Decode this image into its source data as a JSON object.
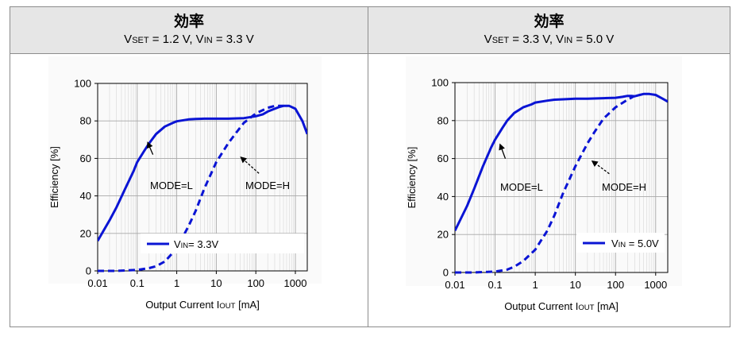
{
  "panels": [
    {
      "title": "効率",
      "subtitle": {
        "vset_v": "V",
        "vset_sub": "SET",
        "vset_value": " = 1.2 V, ",
        "vin_v": "V",
        "vin_sub": "IN",
        "vin_value": " = 3.3 V"
      }
    },
    {
      "title": "効率",
      "subtitle": {
        "vset_v": "V",
        "vset_sub": "SET",
        "vset_value": " = 3.3 V, ",
        "vin_v": "V",
        "vin_sub": "IN",
        "vin_value": " = 5.0 V"
      }
    }
  ],
  "colors": {
    "curve": "#0a14d4",
    "grid": "#c8c8c8",
    "header_bg": "#e6e6e6"
  },
  "chart_data": [
    {
      "type": "line",
      "title": "効率 VSET = 1.2 V, VIN = 3.3 V",
      "xlabel_main": "Output Current I",
      "xlabel_sub": "OUT",
      "xlabel_unit": " [mA]",
      "ylabel": "Efficiency [%]",
      "x_scale": "log",
      "xlim": [
        0.01,
        2000
      ],
      "ylim": [
        0,
        100
      ],
      "x_ticks": [
        0.01,
        0.1,
        1,
        10,
        100,
        1000
      ],
      "x_tick_labels": [
        "0.01",
        "0.1",
        "1",
        "10",
        "100",
        "1000"
      ],
      "y_ticks": [
        0,
        20,
        40,
        60,
        80,
        100
      ],
      "y_tick_labels": [
        "0",
        "20",
        "40",
        "60",
        "80",
        "100"
      ],
      "legend": {
        "label_v": "V",
        "label_sub": "IN",
        "label_rest": "= 3.3V",
        "position": "bottom-right"
      },
      "annotations": [
        {
          "text": "MODE=L",
          "arrow_style": "solid",
          "target_series": "MODE=L"
        },
        {
          "text": "MODE=H",
          "arrow_style": "dashed",
          "target_series": "MODE=H"
        }
      ],
      "series": [
        {
          "name": "MODE=L",
          "style": "solid",
          "x": [
            0.01,
            0.02,
            0.03,
            0.05,
            0.08,
            0.1,
            0.15,
            0.2,
            0.3,
            0.5,
            0.8,
            1,
            2,
            3,
            5,
            10,
            20,
            50,
            100,
            150,
            200,
            300,
            400,
            500,
            700,
            1000,
            1500,
            2000
          ],
          "y": [
            16,
            27,
            34,
            44,
            53,
            58,
            64,
            68,
            73,
            77,
            79,
            79.8,
            80.8,
            81,
            81.2,
            81.2,
            81.2,
            81.5,
            82.5,
            83.5,
            85,
            86.5,
            87.5,
            88,
            88,
            86.5,
            80,
            73
          ]
        },
        {
          "name": "MODE=H",
          "style": "dashed",
          "x": [
            0.01,
            0.03,
            0.1,
            0.2,
            0.3,
            0.5,
            1,
            2,
            3,
            5,
            10,
            20,
            30,
            50,
            100,
            200,
            300,
            500
          ],
          "y": [
            0,
            0,
            0.5,
            1.5,
            2.5,
            5,
            12,
            24,
            32,
            44,
            58,
            68,
            73,
            79,
            84,
            87,
            88,
            88
          ]
        }
      ]
    },
    {
      "type": "line",
      "title": "効率 VSET = 3.3 V, VIN = 5.0 V",
      "xlabel_main": "Output Current I",
      "xlabel_sub": "OUT",
      "xlabel_unit": " [mA]",
      "ylabel": "Efficiency [%]",
      "x_scale": "log",
      "xlim": [
        0.01,
        2000
      ],
      "ylim": [
        0,
        100
      ],
      "x_ticks": [
        0.01,
        0.1,
        1,
        10,
        100,
        1000
      ],
      "x_tick_labels": [
        "0.01",
        "0.1",
        "1",
        "10",
        "100",
        "1000"
      ],
      "y_ticks": [
        0,
        20,
        40,
        60,
        80,
        100
      ],
      "y_tick_labels": [
        "0",
        "20",
        "40",
        "60",
        "80",
        "100"
      ],
      "legend": {
        "label_v": "V",
        "label_sub": "IN",
        "label_rest": " = 5.0V",
        "position": "bottom-right"
      },
      "annotations": [
        {
          "text": "MODE=L",
          "arrow_style": "solid",
          "target_series": "MODE=L"
        },
        {
          "text": "MODE=H",
          "arrow_style": "dashed",
          "target_series": "MODE=H"
        }
      ],
      "series": [
        {
          "name": "MODE=L",
          "style": "solid",
          "x": [
            0.01,
            0.02,
            0.03,
            0.05,
            0.08,
            0.1,
            0.15,
            0.2,
            0.3,
            0.5,
            0.8,
            1,
            2,
            3,
            5,
            10,
            20,
            50,
            100,
            150,
            200,
            250,
            300,
            400,
            500,
            700,
            1000,
            1500,
            2000
          ],
          "y": [
            22,
            35,
            44,
            56,
            66,
            70,
            76,
            80,
            84,
            87,
            88.5,
            89.5,
            90.5,
            91,
            91.2,
            91.5,
            91.5,
            91.8,
            92,
            92.5,
            93,
            93,
            92.8,
            93.5,
            94,
            94,
            93.5,
            91.5,
            90
          ]
        },
        {
          "name": "MODE=H",
          "style": "dashed",
          "x": [
            0.01,
            0.03,
            0.1,
            0.2,
            0.3,
            0.5,
            1,
            2,
            3,
            5,
            10,
            20,
            30,
            50,
            100,
            200,
            300
          ],
          "y": [
            0,
            0,
            0.5,
            1.5,
            3,
            6,
            12,
            22,
            30,
            42,
            56,
            68,
            74,
            81,
            87,
            91,
            93
          ]
        }
      ]
    }
  ]
}
